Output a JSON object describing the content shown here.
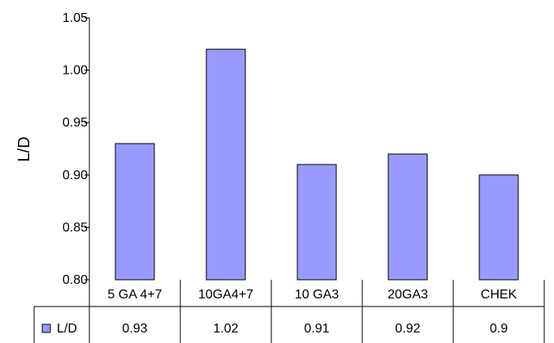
{
  "chart_data": {
    "type": "bar",
    "title": "",
    "xlabel": "",
    "ylabel": "L/D",
    "ylim": [
      0.8,
      1.05
    ],
    "yticks": [
      "0.80",
      "0.85",
      "0.90",
      "0.95",
      "1.00",
      "1.05"
    ],
    "grid": false,
    "legend": "bottom-left, in data table",
    "categories": [
      "5 GA 4+7",
      "10GA4+7",
      "10 GA3",
      "20GA3",
      "CHEK"
    ],
    "series": [
      {
        "name": "L/D",
        "values": [
          0.93,
          1.02,
          0.91,
          0.92,
          0.9
        ],
        "color": "#9999ff"
      }
    ],
    "data_table": {
      "series_label": "L/D",
      "values": [
        "0.93",
        "1.02",
        "0.91",
        "0.92",
        "0.9"
      ]
    }
  }
}
